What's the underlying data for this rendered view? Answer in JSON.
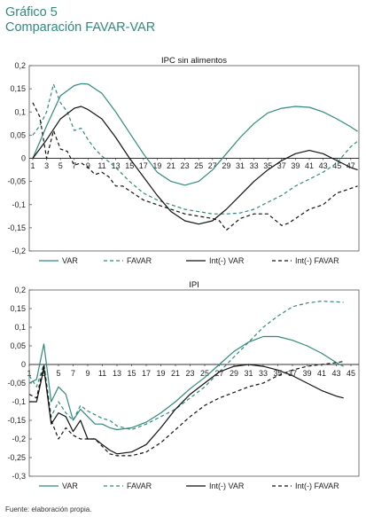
{
  "figure": {
    "heading": "Gráfico 5",
    "subheading": "Comparación FAVAR-VAR",
    "source": "Fuente: elaboración propia."
  },
  "colors": {
    "teal": "#2f8a7c",
    "black": "#111111",
    "title": "#2f8a7c"
  },
  "chart_data": [
    {
      "type": "line",
      "title": "IPC sin alimentos",
      "ylim": [
        -0.2,
        0.2
      ],
      "yticks": [
        "0,2",
        "0,15",
        "0,1",
        "0,05",
        "0",
        "-0,05",
        "-0,1",
        "-0,15",
        "-0,2"
      ],
      "xlim": [
        1,
        48
      ],
      "xticks": [
        "1",
        "3",
        "5",
        "7",
        "9",
        "11",
        "13",
        "15",
        "17",
        "19",
        "21",
        "23",
        "25",
        "27",
        "29",
        "31",
        "33",
        "35",
        "37",
        "39",
        "41",
        "43",
        "45",
        "47"
      ],
      "legend_position": "bottom",
      "series": [
        {
          "name": "VAR",
          "color": "#2f8a7c",
          "dash": "solid",
          "points": [
            [
              1,
              0.0
            ],
            [
              3,
              0.07
            ],
            [
              5,
              0.135
            ],
            [
              7,
              0.157
            ],
            [
              8,
              0.161
            ],
            [
              9,
              0.16
            ],
            [
              11,
              0.14
            ],
            [
              13,
              0.1
            ],
            [
              15,
              0.055
            ],
            [
              17,
              0.01
            ],
            [
              19,
              -0.03
            ],
            [
              21,
              -0.05
            ],
            [
              23,
              -0.058
            ],
            [
              25,
              -0.05
            ],
            [
              27,
              -0.025
            ],
            [
              29,
              0.01
            ],
            [
              31,
              0.045
            ],
            [
              33,
              0.075
            ],
            [
              35,
              0.098
            ],
            [
              37,
              0.108
            ],
            [
              39,
              0.112
            ],
            [
              41,
              0.11
            ],
            [
              43,
              0.1
            ],
            [
              45,
              0.085
            ],
            [
              47,
              0.068
            ],
            [
              48,
              0.058
            ]
          ]
        },
        {
          "name": "FAVAR",
          "color": "#2f8a7c",
          "dash": "dashed",
          "points": [
            [
              1,
              0.05
            ],
            [
              2,
              0.07
            ],
            [
              3,
              0.1
            ],
            [
              4,
              0.16
            ],
            [
              5,
              0.12
            ],
            [
              6,
              0.1
            ],
            [
              7,
              0.06
            ],
            [
              8,
              0.065
            ],
            [
              9,
              0.04
            ],
            [
              10,
              0.02
            ],
            [
              11,
              0.005
            ],
            [
              13,
              -0.02
            ],
            [
              15,
              -0.05
            ],
            [
              17,
              -0.075
            ],
            [
              19,
              -0.09
            ],
            [
              21,
              -0.1
            ],
            [
              23,
              -0.11
            ],
            [
              25,
              -0.115
            ],
            [
              27,
              -0.12
            ],
            [
              29,
              -0.12
            ],
            [
              31,
              -0.118
            ],
            [
              33,
              -0.11
            ],
            [
              35,
              -0.095
            ],
            [
              37,
              -0.08
            ],
            [
              39,
              -0.06
            ],
            [
              41,
              -0.045
            ],
            [
              43,
              -0.03
            ],
            [
              45,
              -0.01
            ],
            [
              47,
              0.025
            ],
            [
              48,
              0.037
            ]
          ]
        },
        {
          "name": "Int(-) VAR",
          "color": "#111111",
          "dash": "solid",
          "points": [
            [
              1,
              0.0
            ],
            [
              3,
              0.04
            ],
            [
              5,
              0.085
            ],
            [
              7,
              0.108
            ],
            [
              8,
              0.112
            ],
            [
              9,
              0.105
            ],
            [
              11,
              0.085
            ],
            [
              13,
              0.045
            ],
            [
              15,
              0.0
            ],
            [
              17,
              -0.04
            ],
            [
              19,
              -0.08
            ],
            [
              21,
              -0.115
            ],
            [
              23,
              -0.135
            ],
            [
              25,
              -0.142
            ],
            [
              27,
              -0.135
            ],
            [
              29,
              -0.11
            ],
            [
              31,
              -0.08
            ],
            [
              33,
              -0.05
            ],
            [
              35,
              -0.025
            ],
            [
              37,
              -0.005
            ],
            [
              39,
              0.01
            ],
            [
              41,
              0.017
            ],
            [
              43,
              0.01
            ],
            [
              45,
              -0.005
            ],
            [
              47,
              -0.02
            ],
            [
              48,
              -0.025
            ]
          ]
        },
        {
          "name": "Int(-) FAVAR",
          "color": "#111111",
          "dash": "dashed",
          "points": [
            [
              1,
              0.12
            ],
            [
              2,
              0.09
            ],
            [
              3,
              0.0
            ],
            [
              4,
              0.06
            ],
            [
              5,
              0.02
            ],
            [
              6,
              0.015
            ],
            [
              7,
              -0.015
            ],
            [
              8,
              -0.01
            ],
            [
              9,
              -0.02
            ],
            [
              10,
              -0.035
            ],
            [
              11,
              -0.03
            ],
            [
              12,
              -0.04
            ],
            [
              13,
              -0.06
            ],
            [
              14,
              -0.06
            ],
            [
              15,
              -0.07
            ],
            [
              17,
              -0.09
            ],
            [
              19,
              -0.1
            ],
            [
              21,
              -0.11
            ],
            [
              23,
              -0.12
            ],
            [
              25,
              -0.125
            ],
            [
              27,
              -0.13
            ],
            [
              28,
              -0.135
            ],
            [
              29,
              -0.155
            ],
            [
              31,
              -0.13
            ],
            [
              33,
              -0.12
            ],
            [
              35,
              -0.12
            ],
            [
              37,
              -0.145
            ],
            [
              38,
              -0.14
            ],
            [
              39,
              -0.13
            ],
            [
              41,
              -0.11
            ],
            [
              43,
              -0.1
            ],
            [
              45,
              -0.075
            ],
            [
              47,
              -0.065
            ],
            [
              48,
              -0.06
            ]
          ]
        }
      ]
    },
    {
      "type": "line",
      "title": "IPI",
      "ylim": [
        -0.3,
        0.2
      ],
      "yticks": [
        "0,2",
        "0,15",
        "0,1",
        "0,05",
        "0",
        "-0,05",
        "-0,1",
        "-0,15",
        "-0,2",
        "-0,25",
        "-0,3"
      ],
      "xlim": [
        1,
        43
      ],
      "xticks": [
        "1",
        "3",
        "5",
        "7",
        "9",
        "11",
        "13",
        "15",
        "17",
        "19",
        "21",
        "23",
        "25",
        "27",
        "29",
        "31",
        "33",
        "35",
        "37",
        "39",
        "41",
        "43",
        "45",
        "47"
      ],
      "legend_position": "bottom",
      "series": [
        {
          "name": "VAR",
          "color": "#2f8a7c",
          "dash": "solid",
          "points": [
            [
              1,
              -0.05
            ],
            [
              2,
              -0.04
            ],
            [
              3,
              0.055
            ],
            [
              4,
              -0.1
            ],
            [
              5,
              -0.06
            ],
            [
              6,
              -0.08
            ],
            [
              7,
              -0.15
            ],
            [
              8,
              -0.12
            ],
            [
              9,
              -0.14
            ],
            [
              10,
              -0.16
            ],
            [
              11,
              -0.16
            ],
            [
              12,
              -0.17
            ],
            [
              13,
              -0.175
            ],
            [
              15,
              -0.17
            ],
            [
              17,
              -0.155
            ],
            [
              19,
              -0.13
            ],
            [
              21,
              -0.1
            ],
            [
              23,
              -0.065
            ],
            [
              25,
              -0.035
            ],
            [
              27,
              0.0
            ],
            [
              29,
              0.035
            ],
            [
              31,
              0.06
            ],
            [
              33,
              0.075
            ],
            [
              35,
              0.075
            ],
            [
              37,
              0.065
            ],
            [
              39,
              0.05
            ],
            [
              41,
              0.03
            ],
            [
              43,
              0.005
            ],
            [
              44,
              -0.005
            ]
          ]
        },
        {
          "name": "FAVAR",
          "color": "#2f8a7c",
          "dash": "dashed",
          "points": [
            [
              1,
              -0.03
            ],
            [
              2,
              -0.06
            ],
            [
              3,
              0.0
            ],
            [
              4,
              -0.14
            ],
            [
              5,
              -0.1
            ],
            [
              6,
              -0.13
            ],
            [
              7,
              -0.15
            ],
            [
              8,
              -0.11
            ],
            [
              9,
              -0.125
            ],
            [
              10,
              -0.135
            ],
            [
              11,
              -0.145
            ],
            [
              12,
              -0.15
            ],
            [
              13,
              -0.165
            ],
            [
              15,
              -0.175
            ],
            [
              17,
              -0.16
            ],
            [
              19,
              -0.14
            ],
            [
              21,
              -0.12
            ],
            [
              23,
              -0.09
            ],
            [
              25,
              -0.06
            ],
            [
              27,
              -0.02
            ],
            [
              29,
              0.02
            ],
            [
              31,
              0.06
            ],
            [
              33,
              0.1
            ],
            [
              35,
              0.13
            ],
            [
              37,
              0.155
            ],
            [
              39,
              0.165
            ],
            [
              41,
              0.17
            ],
            [
              43,
              0.168
            ],
            [
              44,
              0.167
            ]
          ]
        },
        {
          "name": "Int(-) VAR",
          "color": "#111111",
          "dash": "solid",
          "points": [
            [
              1,
              -0.1
            ],
            [
              2,
              -0.1
            ],
            [
              3,
              -0.01
            ],
            [
              4,
              -0.16
            ],
            [
              5,
              -0.13
            ],
            [
              6,
              -0.14
            ],
            [
              7,
              -0.18
            ],
            [
              8,
              -0.15
            ],
            [
              9,
              -0.2
            ],
            [
              10,
              -0.2
            ],
            [
              11,
              -0.215
            ],
            [
              12,
              -0.23
            ],
            [
              13,
              -0.24
            ],
            [
              15,
              -0.235
            ],
            [
              17,
              -0.215
            ],
            [
              19,
              -0.17
            ],
            [
              21,
              -0.12
            ],
            [
              23,
              -0.08
            ],
            [
              25,
              -0.05
            ],
            [
              27,
              -0.02
            ],
            [
              29,
              -0.005
            ],
            [
              31,
              0.0
            ],
            [
              33,
              -0.005
            ],
            [
              35,
              -0.015
            ],
            [
              37,
              -0.03
            ],
            [
              39,
              -0.05
            ],
            [
              41,
              -0.07
            ],
            [
              43,
              -0.085
            ],
            [
              44,
              -0.09
            ]
          ]
        },
        {
          "name": "Int(-) FAVAR",
          "color": "#111111",
          "dash": "dashed",
          "points": [
            [
              1,
              -0.08
            ],
            [
              2,
              -0.09
            ],
            [
              3,
              0.0
            ],
            [
              4,
              -0.15
            ],
            [
              5,
              -0.2
            ],
            [
              6,
              -0.17
            ],
            [
              7,
              -0.19
            ],
            [
              8,
              -0.2
            ],
            [
              9,
              -0.2
            ],
            [
              10,
              -0.2
            ],
            [
              11,
              -0.22
            ],
            [
              12,
              -0.24
            ],
            [
              13,
              -0.245
            ],
            [
              15,
              -0.245
            ],
            [
              17,
              -0.235
            ],
            [
              19,
              -0.21
            ],
            [
              21,
              -0.175
            ],
            [
              23,
              -0.14
            ],
            [
              25,
              -0.11
            ],
            [
              27,
              -0.09
            ],
            [
              29,
              -0.075
            ],
            [
              31,
              -0.06
            ],
            [
              33,
              -0.05
            ],
            [
              35,
              -0.03
            ],
            [
              37,
              -0.015
            ],
            [
              39,
              -0.005
            ],
            [
              41,
              0.0
            ],
            [
              43,
              0.005
            ],
            [
              44,
              0.008
            ]
          ]
        }
      ]
    }
  ]
}
